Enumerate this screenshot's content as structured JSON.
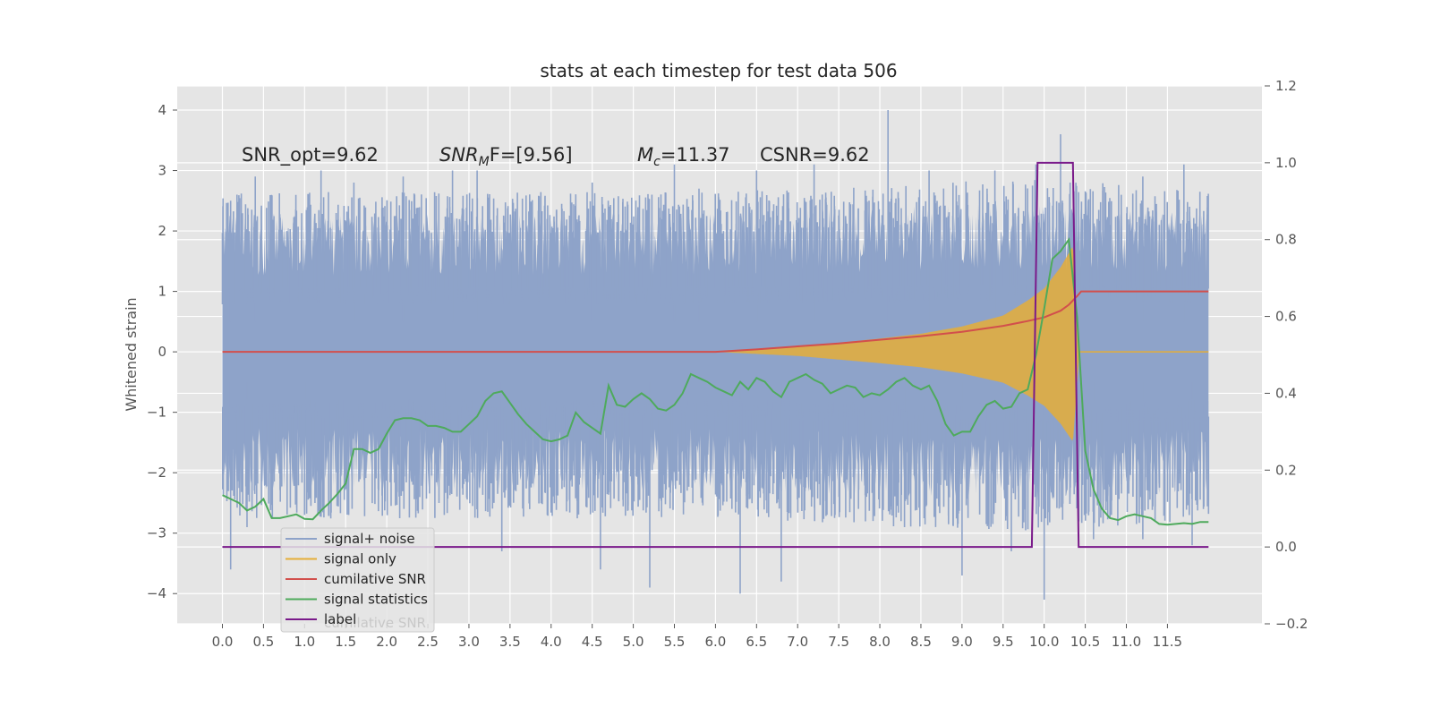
{
  "chart_data": {
    "type": "line",
    "title": "stats at each timestep for test data 506",
    "ylabel": "Whitened strain",
    "xlabel": "",
    "xlim": [
      -0.55,
      12.65
    ],
    "ylim": [
      -4.5,
      4.4
    ],
    "ylim_right": [
      -0.2,
      1.2
    ],
    "x_ticks": [
      "0.0",
      "0.5",
      "1.0",
      "1.5",
      "2.0",
      "2.5",
      "3.0",
      "3.5",
      "4.0",
      "4.5",
      "5.0",
      "5.5",
      "6.0",
      "6.5",
      "7.0",
      "7.5",
      "8.0",
      "8.5",
      "9.0",
      "9.5",
      "10.0",
      "10.5",
      "11.0",
      "11.5"
    ],
    "y_ticks": [
      "4",
      "3",
      "2",
      "1",
      "0",
      "−1",
      "−2",
      "−3",
      "−4"
    ],
    "y_ticks_right": [
      "1.2",
      "1.0",
      "0.8",
      "0.6",
      "0.4",
      "0.2",
      "0.0",
      "−0.2"
    ],
    "grid": true,
    "background": "#e5e5e5",
    "annotations": {
      "snr_opt": "SNR_opt=9.62",
      "snr_mf_prefix": "SNR",
      "snr_mf_sub": "M",
      "snr_mf_suffix": "F=[9.56]",
      "mc_prefix": "M",
      "mc_sub": "c",
      "mc_suffix": "=11.37",
      "csnr": "CSNR=9.62"
    },
    "legend_position": "lower-left",
    "legend_ghost_text": "cumilative SNR",
    "series": [
      {
        "name": "signal+ noise",
        "axis": "left",
        "color": "#8ea3c9",
        "x_range": [
          0,
          12.0
        ],
        "envelope": [
          [
            0,
            2.3
          ],
          [
            2,
            2.3
          ],
          [
            4,
            2.3
          ],
          [
            6,
            2.3
          ],
          [
            8,
            2.4
          ],
          [
            10,
            2.5
          ],
          [
            12,
            2.3
          ]
        ],
        "peaks": [
          [
            0.1,
            2.5
          ],
          [
            0.4,
            2.9
          ],
          [
            1.2,
            3.0
          ],
          [
            1.6,
            2.8
          ],
          [
            2.2,
            2.9
          ],
          [
            2.8,
            3.0
          ],
          [
            3.1,
            3.0
          ],
          [
            4.5,
            2.8
          ],
          [
            5.5,
            3.1
          ],
          [
            5.8,
            2.7
          ],
          [
            6.5,
            3.0
          ],
          [
            7.2,
            3.1
          ],
          [
            8.1,
            4.0
          ],
          [
            8.6,
            3.0
          ],
          [
            9.4,
            3.0
          ],
          [
            9.9,
            3.1
          ],
          [
            10.2,
            3.6
          ],
          [
            11.2,
            2.9
          ],
          [
            11.7,
            3.1
          ]
        ],
        "troughs": [
          [
            0.1,
            -3.6
          ],
          [
            0.3,
            -2.9
          ],
          [
            1.0,
            -2.7
          ],
          [
            2.7,
            -2.7
          ],
          [
            3.4,
            -3.3
          ],
          [
            4.6,
            -3.6
          ],
          [
            5.2,
            -3.9
          ],
          [
            6.3,
            -4.0
          ],
          [
            6.8,
            -3.8
          ],
          [
            8.3,
            -2.9
          ],
          [
            9.0,
            -3.7
          ],
          [
            9.6,
            -3.3
          ],
          [
            10.0,
            -4.1
          ],
          [
            10.6,
            -3.1
          ],
          [
            11.2,
            -3.1
          ],
          [
            11.8,
            -3.2
          ]
        ]
      },
      {
        "name": "signal only",
        "axis": "left",
        "color": "#e5ae38",
        "x_range": [
          6.0,
          12.0
        ],
        "amplitude": [
          [
            6.0,
            0.0
          ],
          [
            7.0,
            0.08
          ],
          [
            8.0,
            0.22
          ],
          [
            8.5,
            0.3
          ],
          [
            9.0,
            0.42
          ],
          [
            9.5,
            0.6
          ],
          [
            9.8,
            0.85
          ],
          [
            10.0,
            1.05
          ],
          [
            10.2,
            1.4
          ],
          [
            10.35,
            1.75
          ],
          [
            10.42,
            0.2
          ],
          [
            10.45,
            0.0
          ],
          [
            12.0,
            0.0
          ]
        ]
      },
      {
        "name": "cumilative SNR",
        "axis": "left",
        "color": "#d24f4c",
        "x": [
          0,
          6.0,
          6.5,
          7.0,
          7.5,
          8.0,
          8.5,
          9.0,
          9.5,
          9.8,
          10.0,
          10.2,
          10.3,
          10.4,
          10.45,
          11.0,
          12.0
        ],
        "y": [
          0,
          0,
          0.04,
          0.09,
          0.14,
          0.2,
          0.26,
          0.33,
          0.43,
          0.51,
          0.57,
          0.68,
          0.78,
          0.92,
          1.0,
          1.0,
          1.0
        ]
      },
      {
        "name": "signal statistics",
        "axis": "right",
        "color": "#4eaa5c",
        "x": [
          0,
          0.1,
          0.2,
          0.3,
          0.4,
          0.5,
          0.6,
          0.7,
          0.8,
          0.9,
          1.0,
          1.1,
          1.2,
          1.3,
          1.4,
          1.5,
          1.6,
          1.7,
          1.8,
          1.9,
          2.0,
          2.1,
          2.2,
          2.3,
          2.4,
          2.5,
          2.6,
          2.7,
          2.8,
          2.9,
          3.0,
          3.1,
          3.2,
          3.3,
          3.4,
          3.5,
          3.6,
          3.7,
          3.8,
          3.9,
          4.0,
          4.1,
          4.2,
          4.3,
          4.4,
          4.5,
          4.6,
          4.7,
          4.8,
          4.9,
          5.0,
          5.1,
          5.2,
          5.3,
          5.4,
          5.5,
          5.6,
          5.7,
          5.8,
          5.9,
          6.0,
          6.1,
          6.2,
          6.3,
          6.4,
          6.5,
          6.6,
          6.7,
          6.8,
          6.9,
          7.0,
          7.1,
          7.2,
          7.3,
          7.4,
          7.5,
          7.6,
          7.7,
          7.8,
          7.9,
          8.0,
          8.1,
          8.2,
          8.3,
          8.4,
          8.5,
          8.6,
          8.7,
          8.8,
          8.9,
          9.0,
          9.1,
          9.2,
          9.3,
          9.4,
          9.5,
          9.6,
          9.7,
          9.8,
          9.9,
          10.0,
          10.1,
          10.2,
          10.3,
          10.4,
          10.5,
          10.6,
          10.7,
          10.8,
          10.9,
          11.0,
          11.1,
          11.2,
          11.3,
          11.4,
          11.5,
          11.6,
          11.7,
          11.8,
          11.9,
          12.0
        ],
        "y": [
          0.135,
          0.125,
          0.115,
          0.095,
          0.105,
          0.125,
          0.075,
          0.075,
          0.08,
          0.085,
          0.073,
          0.072,
          0.095,
          0.115,
          0.138,
          0.165,
          0.255,
          0.255,
          0.245,
          0.255,
          0.295,
          0.33,
          0.335,
          0.335,
          0.33,
          0.315,
          0.315,
          0.31,
          0.3,
          0.3,
          0.32,
          0.34,
          0.38,
          0.4,
          0.405,
          0.375,
          0.345,
          0.32,
          0.3,
          0.28,
          0.275,
          0.28,
          0.29,
          0.35,
          0.325,
          0.31,
          0.295,
          0.42,
          0.37,
          0.365,
          0.385,
          0.4,
          0.385,
          0.36,
          0.355,
          0.37,
          0.4,
          0.45,
          0.44,
          0.43,
          0.415,
          0.405,
          0.395,
          0.43,
          0.41,
          0.44,
          0.43,
          0.405,
          0.39,
          0.43,
          0.44,
          0.45,
          0.435,
          0.425,
          0.4,
          0.41,
          0.42,
          0.415,
          0.39,
          0.4,
          0.395,
          0.41,
          0.43,
          0.44,
          0.42,
          0.41,
          0.42,
          0.38,
          0.32,
          0.29,
          0.3,
          0.3,
          0.34,
          0.37,
          0.38,
          0.36,
          0.365,
          0.4,
          0.41,
          0.5,
          0.62,
          0.75,
          0.77,
          0.8,
          0.6,
          0.25,
          0.15,
          0.1,
          0.075,
          0.07,
          0.08,
          0.085,
          0.08,
          0.075,
          0.06,
          0.058,
          0.06,
          0.062,
          0.06,
          0.065,
          0.065
        ]
      },
      {
        "name": "label",
        "axis": "right",
        "color": "#7a1a8a",
        "x": [
          0,
          9.85,
          9.92,
          10.35,
          10.42,
          12.0
        ],
        "y": [
          0,
          0,
          1,
          1,
          0,
          0
        ]
      }
    ]
  }
}
